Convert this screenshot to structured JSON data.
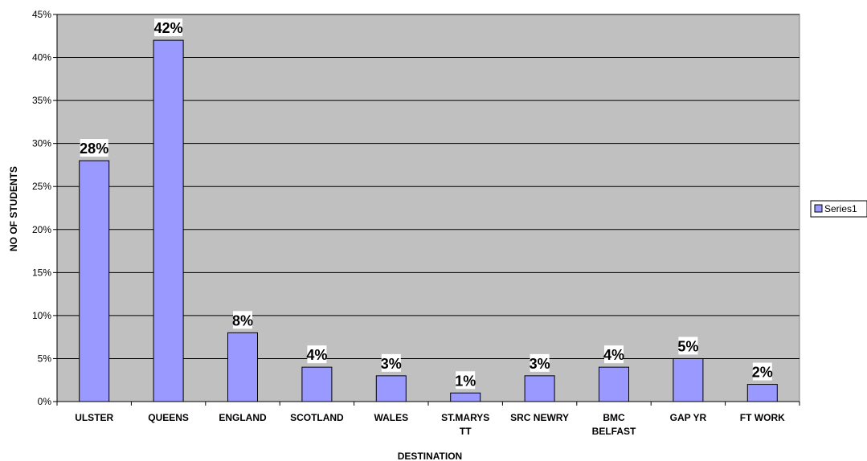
{
  "chart_data": {
    "type": "bar",
    "categories": [
      "ULSTER",
      "QUEENS",
      "ENGLAND",
      "SCOTLAND",
      "WALES",
      "ST.MARYS TT",
      "SRC NEWRY",
      "BMC BELFAST",
      "GAP YR",
      "FT WORK"
    ],
    "series": [
      {
        "name": "Series1",
        "values": [
          28,
          42,
          8,
          4,
          3,
          1,
          3,
          4,
          5,
          2
        ]
      }
    ],
    "data_labels": [
      "28%",
      "42%",
      "8%",
      "4%",
      "3%",
      "1%",
      "3%",
      "4%",
      "5%",
      "2%"
    ],
    "yticks": [
      "0%",
      "5%",
      "10%",
      "15%",
      "20%",
      "25%",
      "30%",
      "35%",
      "40%",
      "45%"
    ],
    "title": "",
    "xlabel": "DESTINATION",
    "ylabel": "NO OF STUDENTS",
    "ylim": [
      0,
      45
    ],
    "grid": true,
    "legend_position": "right",
    "colors": {
      "plot_background": "#C0C0C0",
      "bar_fill": "#9999FF",
      "bar_stroke": "#000000",
      "gridline": "#000000"
    }
  }
}
